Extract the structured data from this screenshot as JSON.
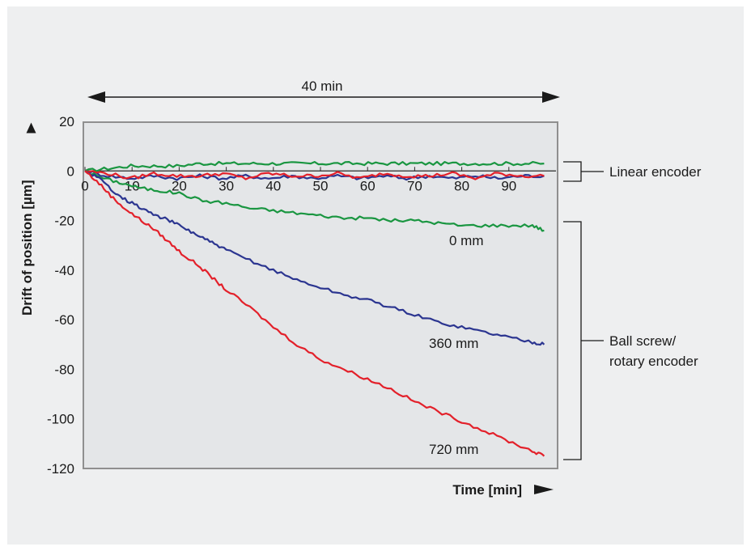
{
  "chart_data": {
    "type": "line",
    "title": "",
    "xlabel": "Time [min]",
    "ylabel": "Drift of position [µm]",
    "xlim": [
      0,
      100
    ],
    "ylim": [
      -120,
      20
    ],
    "x_ticks": [
      "0",
      "10",
      "20",
      "30",
      "40",
      "50",
      "60",
      "70",
      "80",
      "90"
    ],
    "y_ticks": [
      "20",
      "0",
      "-20",
      "-40",
      "-60",
      "-80",
      "-100",
      "-120"
    ],
    "span_label": "40 min",
    "grid": false,
    "colors": {
      "green": "#1a9641",
      "blue": "#2b3590",
      "red": "#e3202a",
      "axis": "#8f8f8f",
      "plotbg": "#e4e6e8"
    },
    "series": [
      {
        "name": "0 mm",
        "color": "green",
        "x": [
          0,
          4,
          8,
          12,
          16,
          20,
          25,
          30,
          35,
          40,
          45,
          50,
          55,
          60,
          65,
          70,
          75,
          80,
          85,
          90,
          95,
          97.5
        ],
        "y": [
          0,
          -3,
          -5,
          -7,
          -8,
          -9,
          -12,
          -13,
          -15,
          -16,
          -17,
          -18,
          -19,
          -19,
          -20,
          -20,
          -21,
          -22,
          -22,
          -22,
          -22,
          -24
        ]
      },
      {
        "name": "360 mm",
        "color": "blue",
        "x": [
          0,
          3,
          6,
          9,
          12,
          15,
          18,
          21,
          24,
          27,
          30,
          35,
          40,
          45,
          50,
          55,
          60,
          65,
          70,
          75,
          80,
          85,
          90,
          95,
          97.5
        ],
        "y": [
          0,
          -3,
          -8,
          -12,
          -15,
          -18,
          -20,
          -23,
          -26,
          -29,
          -32,
          -36,
          -40,
          -44,
          -47,
          -50,
          -52,
          -55,
          -58,
          -61,
          -63,
          -65,
          -67,
          -69,
          -70
        ]
      },
      {
        "name": "720 mm",
        "color": "red",
        "x": [
          0,
          3,
          6,
          9,
          12,
          15,
          18,
          21,
          24,
          27,
          30,
          35,
          40,
          45,
          50,
          55,
          60,
          65,
          70,
          75,
          80,
          85,
          90,
          95,
          97.5
        ],
        "y": [
          0,
          -5,
          -11,
          -16,
          -20,
          -24,
          -29,
          -34,
          -38,
          -43,
          -48,
          -55,
          -63,
          -70,
          -76,
          -80,
          -84,
          -88,
          -93,
          -97,
          -101,
          -105,
          -109,
          -113,
          -115
        ]
      }
    ],
    "linear_encoder_traces": [
      {
        "color": "green",
        "y": [
          0,
          1,
          2,
          2,
          2,
          3,
          3,
          3,
          3,
          3,
          3,
          3,
          3,
          3,
          3,
          3,
          3,
          3,
          3,
          3,
          3
        ]
      },
      {
        "color": "blue",
        "y": [
          0,
          -2,
          -3,
          -2,
          -3,
          -2,
          -3,
          -2,
          -3,
          -2,
          -3,
          -2,
          -3,
          -2,
          -3,
          -2,
          -3,
          -2,
          -3,
          -2,
          -2
        ]
      },
      {
        "color": "red",
        "y": [
          0,
          -1,
          -3,
          -1,
          -2,
          -2,
          -1,
          -3,
          -1,
          -2,
          -2,
          -1,
          -3,
          -1,
          -2,
          -2,
          -1,
          -3,
          -1,
          -2,
          -2
        ]
      }
    ],
    "annotations": {
      "linear_encoder": "Linear encoder",
      "ball_screw_line1": "Ball screw/",
      "ball_screw_line2": "rotary encoder"
    }
  }
}
